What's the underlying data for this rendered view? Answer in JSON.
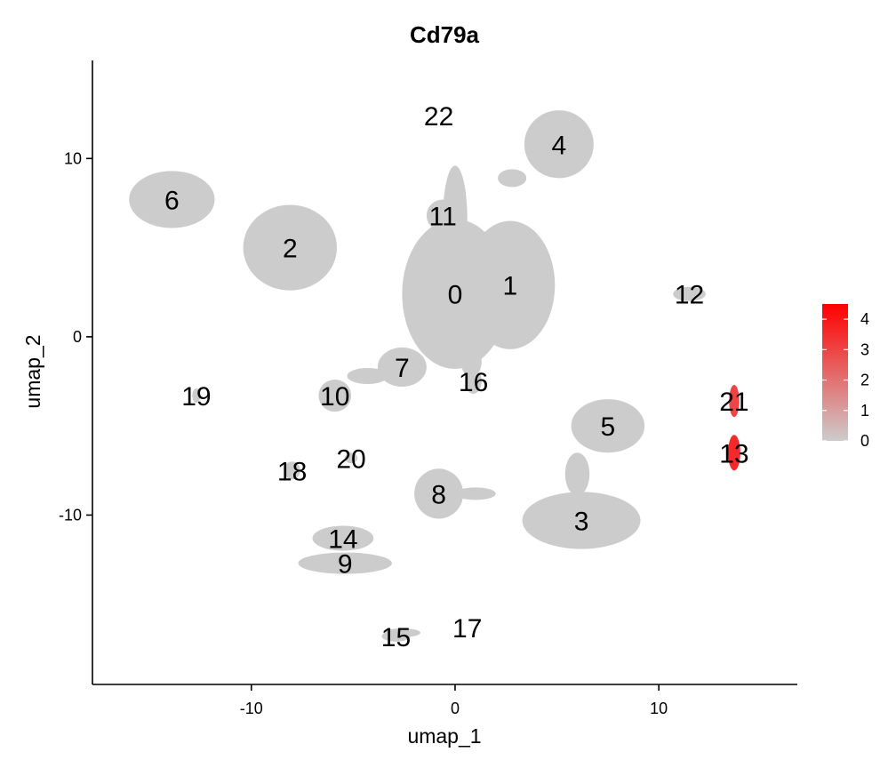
{
  "chart_data": {
    "type": "scatter",
    "title": "Cd79a",
    "xlabel": "umap_1",
    "ylabel": "umap_2",
    "xlim": [
      -17.8,
      16.8
    ],
    "ylim": [
      -19.5,
      15.5
    ],
    "x_ticks": [
      -10,
      0,
      10
    ],
    "y_ticks": [
      -10,
      0,
      10
    ],
    "grid": false,
    "legend": {
      "placement": "right",
      "type": "colorbar",
      "min": 0,
      "max": 4.5,
      "ticks": [
        0,
        1,
        2,
        3,
        4
      ],
      "color_low": "#CCCCCC",
      "color_high": "#FF0000"
    },
    "clusters": [
      {
        "label": "0",
        "x": 0.0,
        "y": 2.4,
        "rx": 2.6,
        "ry": 4.2,
        "expr": 0
      },
      {
        "label": "1",
        "x": 2.7,
        "y": 2.9,
        "rx": 2.2,
        "ry": 3.6,
        "expr": 0
      },
      {
        "label": "2",
        "x": -8.1,
        "y": 5.0,
        "rx": 2.3,
        "ry": 2.4,
        "expr": 0
      },
      {
        "label": "3",
        "x": 6.2,
        "y": -10.3,
        "rx": 2.9,
        "ry": 1.6,
        "expr": 0.15
      },
      {
        "label": "4",
        "x": 5.1,
        "y": 10.8,
        "rx": 1.7,
        "ry": 1.9,
        "expr": 0
      },
      {
        "label": "5",
        "x": 7.5,
        "y": -5.0,
        "rx": 1.8,
        "ry": 1.5,
        "expr": 0.05
      },
      {
        "label": "6",
        "x": -13.9,
        "y": 7.7,
        "rx": 2.1,
        "ry": 1.6,
        "expr": 0
      },
      {
        "label": "7",
        "x": -2.6,
        "y": -1.7,
        "rx": 1.2,
        "ry": 1.1,
        "expr": 0
      },
      {
        "label": "8",
        "x": -0.8,
        "y": -8.8,
        "rx": 1.2,
        "ry": 1.4,
        "expr": 0.05
      },
      {
        "label": "9",
        "x": -5.4,
        "y": -12.7,
        "rx": 2.3,
        "ry": 0.6,
        "expr": 0
      },
      {
        "label": "10",
        "x": -5.9,
        "y": -3.3,
        "rx": 0.8,
        "ry": 0.9,
        "expr": 0
      },
      {
        "label": "11",
        "x": -0.6,
        "y": 6.8,
        "rx": 0.8,
        "ry": 0.9,
        "expr": 0
      },
      {
        "label": "12",
        "x": 11.5,
        "y": 2.4,
        "rx": 0.8,
        "ry": 0.4,
        "expr": 0
      },
      {
        "label": "13",
        "x": 13.7,
        "y": -6.5,
        "rx": 0.3,
        "ry": 1.0,
        "expr": 3.6
      },
      {
        "label": "14",
        "x": -5.5,
        "y": -11.3,
        "rx": 1.5,
        "ry": 0.7,
        "expr": 0
      },
      {
        "label": "15",
        "x": -2.9,
        "y": -16.8,
        "rx": 0.7,
        "ry": 0.3,
        "expr": 0
      },
      {
        "label": "16",
        "x": 0.9,
        "y": -2.5,
        "rx": 0.4,
        "ry": 0.7,
        "expr": 0
      },
      {
        "label": "17",
        "x": 0.6,
        "y": -16.3,
        "rx": 0.0,
        "ry": 0.0,
        "expr": 0
      },
      {
        "label": "18",
        "x": -8.0,
        "y": -7.5,
        "rx": 0.4,
        "ry": 0.5,
        "expr": 0
      },
      {
        "label": "19",
        "x": -12.7,
        "y": -3.3,
        "rx": 0.2,
        "ry": 0.4,
        "expr": 0
      },
      {
        "label": "20",
        "x": -5.1,
        "y": -6.8,
        "rx": 0.3,
        "ry": 0.3,
        "expr": 0
      },
      {
        "label": "21",
        "x": 13.7,
        "y": -3.6,
        "rx": 0.25,
        "ry": 0.9,
        "expr": 3.0
      },
      {
        "label": "22",
        "x": -0.8,
        "y": 12.4,
        "rx": 0.0,
        "ry": 0.0,
        "expr": 0
      }
    ]
  }
}
